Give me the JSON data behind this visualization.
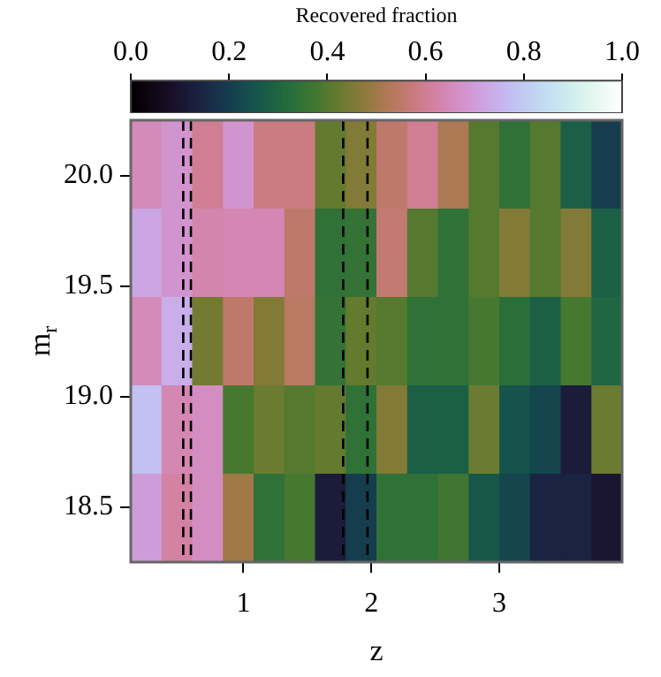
{
  "chart_data": {
    "type": "heatmap",
    "clabel": "Recovered fraction",
    "xlabel": "z",
    "ylabel": "m$_{r}$",
    "x": [
      0.24,
      0.48,
      0.72,
      0.96,
      1.2,
      1.44,
      1.68,
      1.92,
      2.16,
      2.4,
      2.64,
      2.88,
      3.12,
      3.36,
      3.6,
      3.84
    ],
    "y": [
      20.05,
      19.65,
      19.25,
      18.85,
      18.45
    ],
    "cells": [
      [
        0.65,
        0.68,
        0.6,
        0.68,
        0.58,
        0.58,
        0.42,
        0.46,
        0.55,
        0.6,
        0.52,
        0.4,
        0.34,
        0.4,
        0.28,
        0.2
      ],
      [
        0.72,
        0.68,
        0.63,
        0.64,
        0.64,
        0.55,
        0.34,
        0.35,
        0.56,
        0.4,
        0.34,
        0.4,
        0.46,
        0.4,
        0.46,
        0.28
      ],
      [
        0.65,
        0.74,
        0.44,
        0.55,
        0.46,
        0.54,
        0.35,
        0.42,
        0.4,
        0.34,
        0.34,
        0.38,
        0.33,
        0.28,
        0.38,
        0.3
      ],
      [
        0.78,
        0.64,
        0.66,
        0.38,
        0.43,
        0.4,
        0.42,
        0.34,
        0.46,
        0.28,
        0.28,
        0.43,
        0.25,
        0.22,
        0.12,
        0.43
      ],
      [
        0.7,
        0.62,
        0.66,
        0.5,
        0.34,
        0.38,
        0.12,
        0.2,
        0.34,
        0.34,
        0.37,
        0.26,
        0.22,
        0.14,
        0.14,
        0.1
      ]
    ],
    "clim": [
      0,
      1
    ],
    "cticks": [
      {
        "value": 0,
        "label": "0.0"
      },
      {
        "value": 0.2,
        "label": "0.2"
      },
      {
        "value": 0.4,
        "label": "0.4"
      },
      {
        "value": 0.6,
        "label": "0.6"
      },
      {
        "value": 0.8,
        "label": "0.8"
      },
      {
        "value": 1,
        "label": "1.0"
      }
    ],
    "xlim": [
      0.12,
      3.96
    ],
    "xticks": [
      1,
      2,
      3
    ],
    "ylim": [
      18.25,
      20.25
    ],
    "yticks": [
      {
        "value": 18.5,
        "label": "18.5"
      },
      {
        "value": 19,
        "label": "19.0"
      },
      {
        "value": 19.5,
        "label": "19.5"
      },
      {
        "value": 20,
        "label": "20.0"
      }
    ],
    "ref_lines": [
      {
        "axis": "x",
        "value": 0.53,
        "line_style": "dashed"
      },
      {
        "axis": "x",
        "value": 0.59,
        "line_style": "dashed"
      },
      {
        "axis": "x",
        "value": 1.78,
        "line_style": "dashed"
      },
      {
        "axis": "x",
        "value": 1.97,
        "line_style": "dashed"
      }
    ]
  }
}
